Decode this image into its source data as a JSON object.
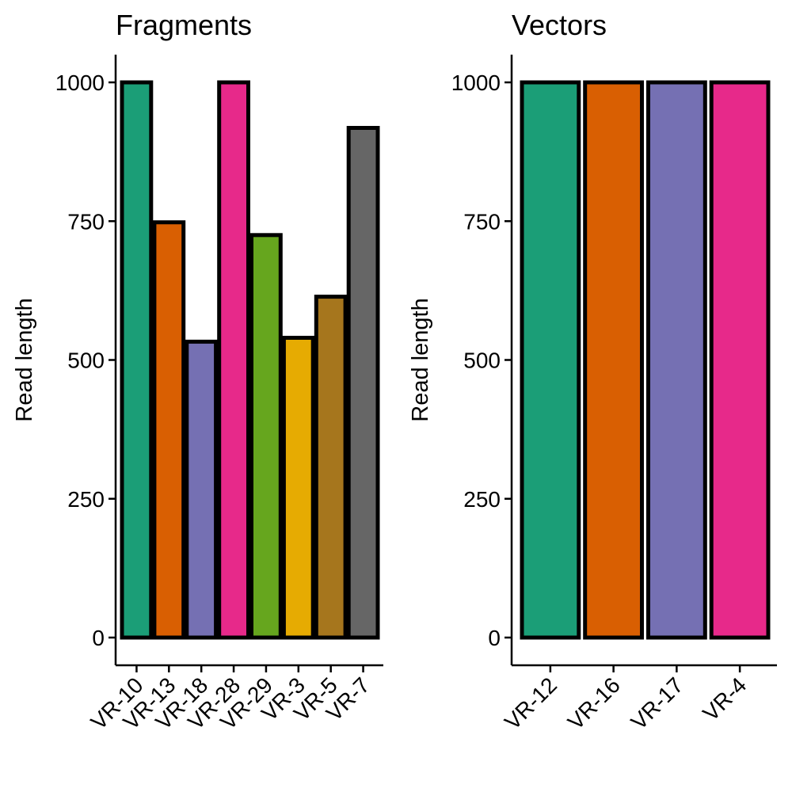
{
  "chart_data": [
    {
      "type": "bar",
      "title": "Fragments",
      "xlabel": "",
      "ylabel": "Read length",
      "ylim": [
        0,
        1000
      ],
      "yticks": [
        0,
        250,
        500,
        750,
        1000
      ],
      "grid": false,
      "legend": "none",
      "categories": [
        "VR-10",
        "VR-13",
        "VR-18",
        "VR-28",
        "VR-29",
        "VR-3",
        "VR-5",
        "VR-7"
      ],
      "values": [
        1000,
        748,
        533,
        1000,
        725,
        540,
        614,
        918
      ],
      "colors": [
        "#1B9E77",
        "#D95F02",
        "#7570B3",
        "#E7298A",
        "#66A61E",
        "#E6AB02",
        "#A6761D",
        "#666666"
      ]
    },
    {
      "type": "bar",
      "title": "Vectors",
      "xlabel": "",
      "ylabel": "Read length",
      "ylim": [
        0,
        1000
      ],
      "yticks": [
        0,
        250,
        500,
        750,
        1000
      ],
      "grid": false,
      "legend": "none",
      "categories": [
        "VR-12",
        "VR-16",
        "VR-17",
        "VR-4"
      ],
      "values": [
        1000,
        1000,
        1000,
        1000
      ],
      "colors": [
        "#1B9E77",
        "#D95F02",
        "#7570B3",
        "#E7298A"
      ]
    }
  ]
}
